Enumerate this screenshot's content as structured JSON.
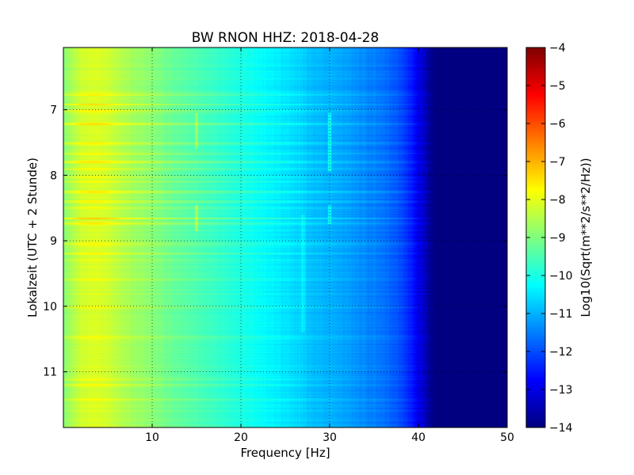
{
  "chart_data": {
    "type": "heatmap",
    "title": "BW RNON HHZ: 2018-04-28",
    "xlabel": "Frequency [Hz]",
    "ylabel": "Lokalzeit (UTC + 2 Stunde)",
    "xlim": [
      0,
      50
    ],
    "ylim": [
      11.85,
      6.05
    ],
    "y_axis_inverted": true,
    "grid": true,
    "x_ticks": [
      10,
      20,
      30,
      40,
      50
    ],
    "y_ticks": [
      7,
      8,
      9,
      10,
      11
    ],
    "x_tick_labels": [
      "10",
      "20",
      "30",
      "40",
      "50"
    ],
    "y_tick_labels": [
      "7",
      "8",
      "9",
      "10",
      "11"
    ],
    "colormap": "jet",
    "colorbar": {
      "label": "Log10(Sqrt(m**2/s**2/Hz))",
      "vmin": -14,
      "vmax": -4,
      "ticks": [
        -4,
        -5,
        -6,
        -7,
        -8,
        -9,
        -10,
        -11,
        -12,
        -13,
        -14
      ],
      "tick_labels": [
        "−4",
        "−5",
        "−6",
        "−7",
        "−8",
        "−9",
        "−10",
        "−11",
        "−12",
        "−13",
        "−14"
      ]
    },
    "spectrum_profile": {
      "frequency_hz": [
        0,
        2,
        4,
        6,
        8,
        10,
        12,
        15,
        18,
        20,
        22,
        25,
        27,
        28,
        30,
        33,
        36,
        38,
        39.5,
        40.5,
        41.3,
        42,
        50
      ],
      "level_log10": [
        -8.9,
        -8.2,
        -8.1,
        -8.4,
        -8.7,
        -8.9,
        -9.2,
        -9.5,
        -9.8,
        -10.0,
        -10.2,
        -10.5,
        -10.7,
        -10.9,
        -11.0,
        -11.3,
        -11.6,
        -12.0,
        -12.6,
        -13.2,
        -13.8,
        -14.0,
        -14.0
      ]
    },
    "horizontal_bands": [
      {
        "time": 6.77,
        "level_offset": 0.4
      },
      {
        "time": 6.92,
        "level_offset": 0.8
      },
      {
        "time": 7.02,
        "level_offset": 0.5
      },
      {
        "time": 7.22,
        "level_offset": 0.7
      },
      {
        "time": 7.52,
        "level_offset": 0.5
      },
      {
        "time": 7.67,
        "level_offset": 0.4
      },
      {
        "time": 7.8,
        "level_offset": 0.6
      },
      {
        "time": 7.9,
        "level_offset": 0.35
      },
      {
        "time": 8.02,
        "level_offset": 0.35
      },
      {
        "time": 8.1,
        "level_offset": 0.35
      },
      {
        "time": 8.26,
        "level_offset": 0.5
      },
      {
        "time": 8.4,
        "level_offset": 0.4
      },
      {
        "time": 8.5,
        "level_offset": 0.35
      },
      {
        "time": 8.66,
        "level_offset": 0.9
      },
      {
        "time": 8.74,
        "level_offset": 0.6
      },
      {
        "time": 9.05,
        "level_offset": 0.35
      },
      {
        "time": 9.2,
        "level_offset": 0.5
      },
      {
        "time": 9.3,
        "level_offset": 0.3
      },
      {
        "time": 9.6,
        "level_offset": 0.35
      },
      {
        "time": 10.02,
        "level_offset": 0.3
      },
      {
        "time": 10.48,
        "level_offset": 0.3
      },
      {
        "time": 11.12,
        "level_offset": 0.4
      },
      {
        "time": 11.2,
        "level_offset": 0.5
      },
      {
        "time": 11.42,
        "level_offset": 0.3
      }
    ],
    "vertical_streaks": [
      {
        "frequency": 15.0,
        "time_start": 7.05,
        "time_end": 7.6,
        "level_offset": 0.7
      },
      {
        "frequency": 15.0,
        "time_start": 8.45,
        "time_end": 8.85,
        "level_offset": 0.8
      },
      {
        "frequency": 30.0,
        "time_start": 7.05,
        "time_end": 7.95,
        "level_offset": 0.8
      },
      {
        "frequency": 30.0,
        "time_start": 8.45,
        "time_end": 8.75,
        "level_offset": 0.7
      },
      {
        "frequency": 27.0,
        "time_start": 8.6,
        "time_end": 10.4,
        "level_offset": 0.3
      }
    ]
  }
}
